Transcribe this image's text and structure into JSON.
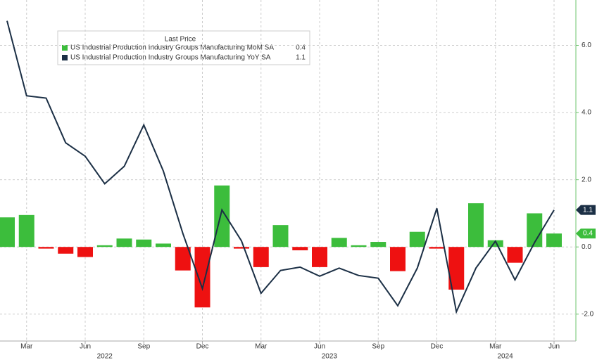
{
  "chart_data": {
    "type": "bar-line",
    "legend_title": "Last Price",
    "categories": [
      null,
      "Mar",
      null,
      null,
      "Jun",
      null,
      null,
      "Sep",
      null,
      null,
      "Dec",
      null,
      null,
      "Mar",
      null,
      null,
      "Jun",
      null,
      null,
      "Sep",
      null,
      null,
      "Dec",
      null,
      null,
      "Mar",
      null,
      null,
      "Jun"
    ],
    "year_groups": [
      {
        "label": "2022",
        "count": 11
      },
      {
        "label": "2023",
        "count": 12
      },
      {
        "label": "2024",
        "count": 6
      }
    ],
    "series": [
      {
        "name": "US Industrial Production Industry Groups Manufacturing MoM SA",
        "type": "bar",
        "color": "#3cbd3c",
        "negative_color": "#ee1111",
        "values": [
          0.88,
          0.95,
          -0.05,
          -0.2,
          -0.3,
          0.05,
          0.25,
          0.22,
          0.1,
          -0.7,
          -1.8,
          1.83,
          -0.05,
          -0.6,
          0.65,
          -0.1,
          -0.6,
          0.27,
          0.05,
          0.15,
          -0.72,
          0.45,
          -0.05,
          -1.27,
          1.3,
          0.2,
          -0.47,
          1.0,
          0.4
        ]
      },
      {
        "name": "US Industrial Production Industry Groups Manufacturing YoY SA",
        "type": "line",
        "color": "#1b2f45",
        "values": [
          6.73,
          4.5,
          4.43,
          3.1,
          2.7,
          1.88,
          2.4,
          3.63,
          2.26,
          0.4,
          -1.24,
          1.1,
          0.18,
          -1.38,
          -0.7,
          -0.6,
          -0.87,
          -0.63,
          -0.85,
          -0.93,
          -1.75,
          -0.63,
          1.15,
          -1.93,
          -0.63,
          0.17,
          -0.98,
          0.13,
          1.1
        ]
      }
    ],
    "ylim": [
      -2.8,
      7.35
    ],
    "yticks": [
      {
        "value": 6,
        "label": "6.0"
      },
      {
        "value": 4,
        "label": "4.0"
      },
      {
        "value": 2,
        "label": "2.0"
      },
      {
        "value": 0,
        "label": "0.0"
      },
      {
        "value": -2,
        "label": "-2.0"
      }
    ],
    "grid": true
  }
}
